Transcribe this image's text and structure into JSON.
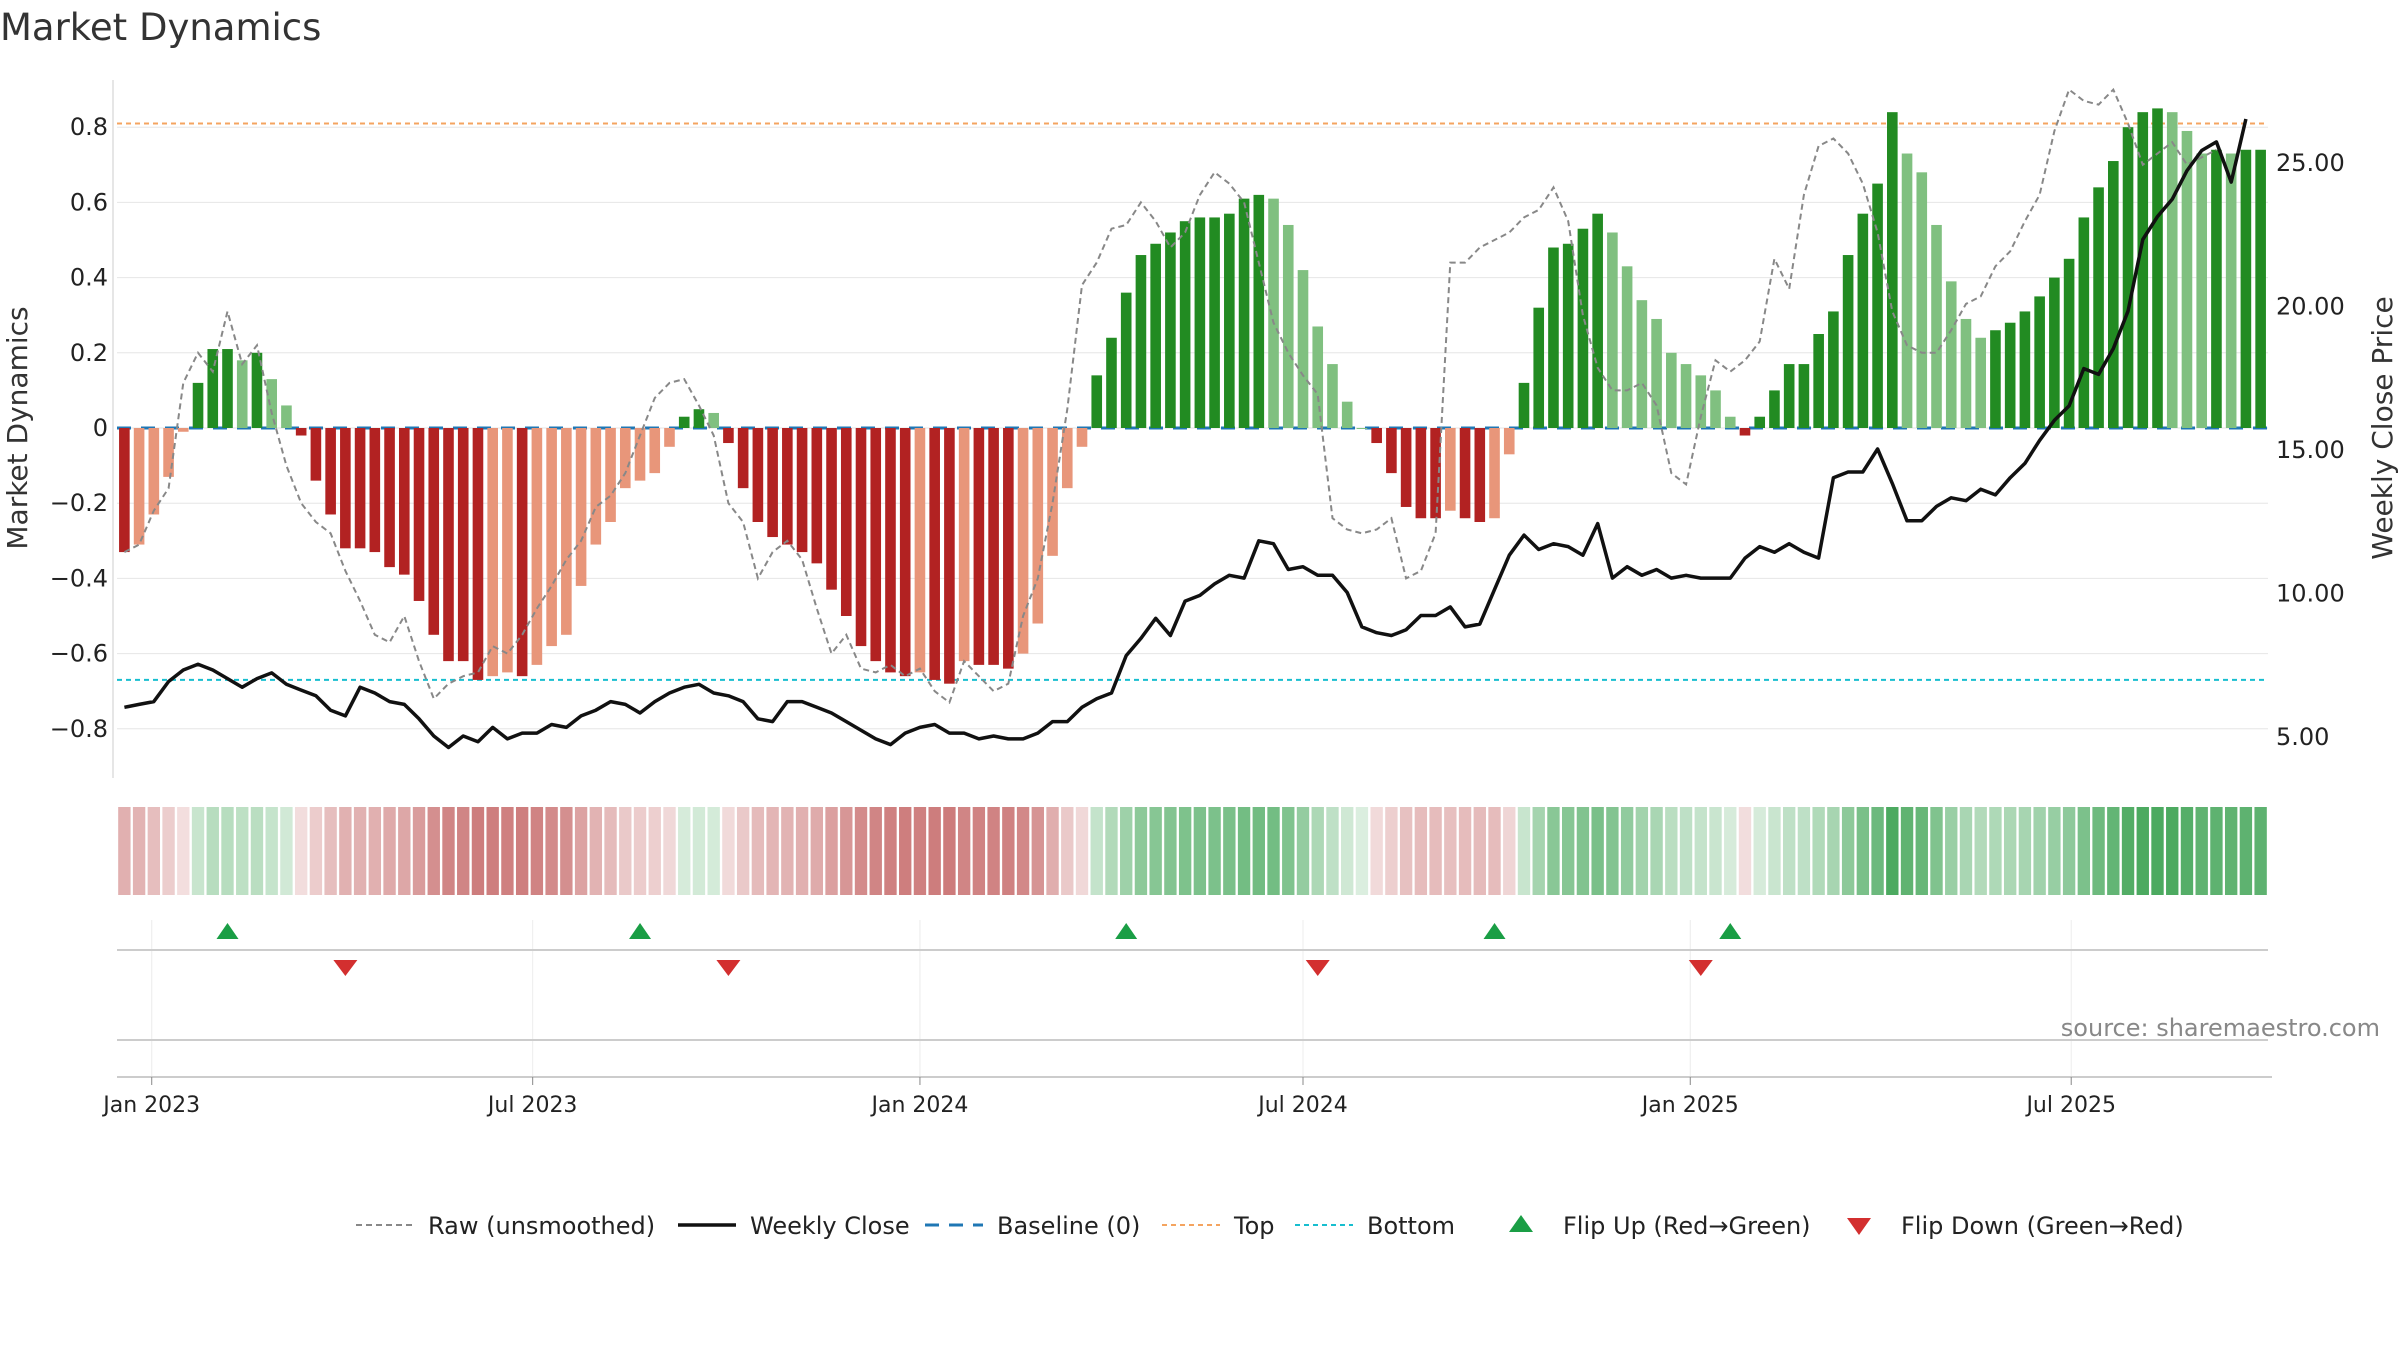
{
  "title": "Market Dynamics",
  "source": "source: sharemaestro.com",
  "colors": {
    "green_strong": "#228B22",
    "green_light": "#80C080",
    "red_strong": "#B22222",
    "red_light": "#E8967A",
    "raw_line": "#888888",
    "close_line": "#111111",
    "baseline": "#1F77B4",
    "top": "#F4A460",
    "bottom": "#17BECF",
    "flip_up": "#1A9E45",
    "flip_down": "#D32F2F"
  },
  "chart_data": {
    "type": "bar",
    "title": "Market Dynamics",
    "xlabel": "",
    "ylabel": "Market Dynamics",
    "y2label": "Weekly Close Price",
    "ylim": [
      -0.93,
      0.93
    ],
    "y2lim": [
      2.5,
      28.0
    ],
    "yticks": [
      -0.8,
      -0.6,
      -0.4,
      -0.2,
      0,
      0.2,
      0.4,
      0.6,
      0.8
    ],
    "y2ticks": [
      5.0,
      10.0,
      15.0,
      20.0,
      25.0
    ],
    "xticks": [
      "Jan 2023",
      "Jul 2023",
      "Jan 2024",
      "Jul 2024",
      "Jan 2025",
      "Jul 2025"
    ],
    "reference_lines": {
      "top": 0.81,
      "bottom": -0.67,
      "baseline": 0
    },
    "grid": true,
    "legend_position": "bottom",
    "legend": [
      "Raw (unsmoothed)",
      "Weekly Close",
      "Baseline (0)",
      "Top",
      "Bottom",
      "Flip Up (Red→Green)",
      "Flip Down (Green→Red)"
    ],
    "start_week": "2022-12-19",
    "series": [
      {
        "name": "Market Dynamics",
        "values": [
          -0.33,
          -0.31,
          -0.23,
          -0.13,
          -0.01,
          0.12,
          0.21,
          0.21,
          0.18,
          0.2,
          0.13,
          0.06,
          -0.02,
          -0.14,
          -0.23,
          -0.32,
          -0.32,
          -0.33,
          -0.37,
          -0.39,
          -0.46,
          -0.55,
          -0.62,
          -0.62,
          -0.67,
          -0.66,
          -0.65,
          -0.66,
          -0.63,
          -0.58,
          -0.55,
          -0.42,
          -0.31,
          -0.25,
          -0.16,
          -0.14,
          -0.12,
          -0.05,
          0.03,
          0.05,
          0.04,
          -0.04,
          -0.16,
          -0.25,
          -0.29,
          -0.31,
          -0.33,
          -0.36,
          -0.43,
          -0.5,
          -0.58,
          -0.62,
          -0.65,
          -0.66,
          -0.65,
          -0.67,
          -0.68,
          -0.62,
          -0.63,
          -0.63,
          -0.64,
          -0.6,
          -0.52,
          -0.34,
          -0.16,
          -0.05,
          0.14,
          0.24,
          0.36,
          0.46,
          0.49,
          0.52,
          0.55,
          0.56,
          0.56,
          0.57,
          0.61,
          0.62,
          0.61,
          0.54,
          0.42,
          0.27,
          0.17,
          0.07,
          0.0,
          -0.04,
          -0.12,
          -0.21,
          -0.24,
          -0.24,
          -0.22,
          -0.24,
          -0.25,
          -0.24,
          -0.07,
          0.12,
          0.32,
          0.48,
          0.49,
          0.53,
          0.57,
          0.52,
          0.43,
          0.34,
          0.29,
          0.2,
          0.17,
          0.14,
          0.1,
          0.03,
          -0.02,
          0.03,
          0.1,
          0.17,
          0.17,
          0.25,
          0.31,
          0.46,
          0.57,
          0.65,
          0.84,
          0.73,
          0.68,
          0.54,
          0.39,
          0.29,
          0.24,
          0.26,
          0.28,
          0.31,
          0.35,
          0.4,
          0.45,
          0.56,
          0.64,
          0.71,
          0.8,
          0.84,
          0.85,
          0.84,
          0.79,
          0.73,
          0.74,
          0.73,
          0.74,
          0.74
        ]
      },
      {
        "name": "Raw (unsmoothed)",
        "values": [
          -0.33,
          -0.31,
          -0.22,
          -0.16,
          0.12,
          0.2,
          0.15,
          0.31,
          0.17,
          0.22,
          0.04,
          -0.1,
          -0.2,
          -0.25,
          -0.28,
          -0.38,
          -0.46,
          -0.55,
          -0.57,
          -0.5,
          -0.62,
          -0.72,
          -0.68,
          -0.66,
          -0.65,
          -0.58,
          -0.6,
          -0.55,
          -0.48,
          -0.42,
          -0.35,
          -0.3,
          -0.21,
          -0.18,
          -0.12,
          -0.02,
          0.08,
          0.12,
          0.13,
          0.06,
          -0.02,
          -0.2,
          -0.25,
          -0.4,
          -0.33,
          -0.3,
          -0.35,
          -0.48,
          -0.6,
          -0.55,
          -0.64,
          -0.65,
          -0.63,
          -0.66,
          -0.64,
          -0.7,
          -0.73,
          -0.62,
          -0.66,
          -0.7,
          -0.68,
          -0.5,
          -0.4,
          -0.2,
          0.05,
          0.38,
          0.44,
          0.53,
          0.54,
          0.6,
          0.55,
          0.48,
          0.52,
          0.62,
          0.68,
          0.65,
          0.6,
          0.44,
          0.28,
          0.2,
          0.14,
          0.09,
          -0.24,
          -0.27,
          -0.28,
          -0.27,
          -0.24,
          -0.4,
          -0.38,
          -0.28,
          0.44,
          0.44,
          0.48,
          0.5,
          0.52,
          0.56,
          0.58,
          0.64,
          0.55,
          0.3,
          0.16,
          0.1,
          0.1,
          0.12,
          0.06,
          -0.12,
          -0.15,
          0.03,
          0.18,
          0.15,
          0.18,
          0.23,
          0.45,
          0.37,
          0.62,
          0.75,
          0.77,
          0.73,
          0.65,
          0.52,
          0.31,
          0.22,
          0.2,
          0.2,
          0.26,
          0.33,
          0.35,
          0.43,
          0.47,
          0.55,
          0.62,
          0.79,
          0.9,
          0.87,
          0.86,
          0.9,
          0.81,
          0.7,
          0.73,
          0.76,
          0.7,
          0.72,
          0.74
        ]
      },
      {
        "name": "Weekly Close",
        "values": [
          6.0,
          6.1,
          6.2,
          6.9,
          7.3,
          7.5,
          7.3,
          7.0,
          6.7,
          7.0,
          7.2,
          6.8,
          6.6,
          6.4,
          5.9,
          5.7,
          6.7,
          6.5,
          6.2,
          6.1,
          5.6,
          5.0,
          4.6,
          5.0,
          4.8,
          5.3,
          4.9,
          5.1,
          5.1,
          5.4,
          5.3,
          5.7,
          5.9,
          6.2,
          6.1,
          5.8,
          6.2,
          6.5,
          6.7,
          6.8,
          6.5,
          6.4,
          6.2,
          5.6,
          5.5,
          6.2,
          6.2,
          6.0,
          5.8,
          5.5,
          5.2,
          4.9,
          4.7,
          5.1,
          5.3,
          5.4,
          5.1,
          5.1,
          4.9,
          5.0,
          4.9,
          4.9,
          5.1,
          5.5,
          5.5,
          6.0,
          6.3,
          6.5,
          7.8,
          8.4,
          9.1,
          8.5,
          9.7,
          9.9,
          10.3,
          10.6,
          10.5,
          11.8,
          11.7,
          10.8,
          10.9,
          10.6,
          10.6,
          10.0,
          8.8,
          8.6,
          8.5,
          8.7,
          9.2,
          9.2,
          9.5,
          8.8,
          8.9,
          10.1,
          11.3,
          12.0,
          11.5,
          11.7,
          11.6,
          11.3,
          12.4,
          10.5,
          10.9,
          10.6,
          10.8,
          10.5,
          10.6,
          10.5,
          10.5,
          10.5,
          11.2,
          11.6,
          11.4,
          11.7,
          11.4,
          11.2,
          14.0,
          14.2,
          14.2,
          15.0,
          13.8,
          12.5,
          12.5,
          13.0,
          13.3,
          13.2,
          13.6,
          13.4,
          14.0,
          14.5,
          15.3,
          16.0,
          16.5,
          17.8,
          17.6,
          18.5,
          19.8,
          22.3,
          23.1,
          23.7,
          24.7,
          25.4,
          25.7,
          24.3,
          26.5
        ]
      }
    ],
    "color_strip": [
      -0.33,
      -0.31,
      -0.23,
      -0.13,
      -0.01,
      0.12,
      0.21,
      0.21,
      0.18,
      0.2,
      0.13,
      0.06,
      -0.02,
      -0.14,
      -0.23,
      -0.32,
      -0.32,
      -0.33,
      -0.37,
      -0.39,
      -0.46,
      -0.55,
      -0.62,
      -0.62,
      -0.67,
      -0.66,
      -0.65,
      -0.66,
      -0.63,
      -0.58,
      -0.55,
      -0.42,
      -0.31,
      -0.25,
      -0.16,
      -0.14,
      -0.12,
      -0.05,
      0.03,
      0.05,
      0.04,
      -0.04,
      -0.16,
      -0.25,
      -0.29,
      -0.31,
      -0.33,
      -0.36,
      -0.43,
      -0.5,
      -0.58,
      -0.62,
      -0.65,
      -0.66,
      -0.65,
      -0.67,
      -0.68,
      -0.62,
      -0.63,
      -0.63,
      -0.64,
      -0.6,
      -0.52,
      -0.34,
      -0.16,
      -0.05,
      0.14,
      0.24,
      0.36,
      0.46,
      0.49,
      0.52,
      0.55,
      0.56,
      0.56,
      0.57,
      0.61,
      0.62,
      0.61,
      0.54,
      0.42,
      0.27,
      0.17,
      0.07,
      0.0,
      -0.04,
      -0.12,
      -0.21,
      -0.24,
      -0.24,
      -0.22,
      -0.24,
      -0.25,
      -0.24,
      -0.07,
      0.12,
      0.32,
      0.48,
      0.49,
      0.53,
      0.57,
      0.52,
      0.43,
      0.34,
      0.29,
      0.2,
      0.17,
      0.14,
      0.1,
      0.03,
      -0.02,
      0.03,
      0.1,
      0.17,
      0.17,
      0.25,
      0.31,
      0.46,
      0.57,
      0.65,
      0.84,
      0.73,
      0.68,
      0.54,
      0.39,
      0.29,
      0.24,
      0.26,
      0.28,
      0.31,
      0.35,
      0.4,
      0.45,
      0.56,
      0.64,
      0.71,
      0.8,
      0.84,
      0.85,
      0.84,
      0.79,
      0.73,
      0.74,
      0.73,
      0.74,
      0.74
    ],
    "flip_up": [
      "2023-02-06",
      "2023-08-21",
      "2024-04-08",
      "2024-09-30",
      "2025-01-20"
    ],
    "flip_down": [
      "2023-04-03",
      "2023-10-02",
      "2024-07-08",
      "2025-01-06"
    ]
  }
}
